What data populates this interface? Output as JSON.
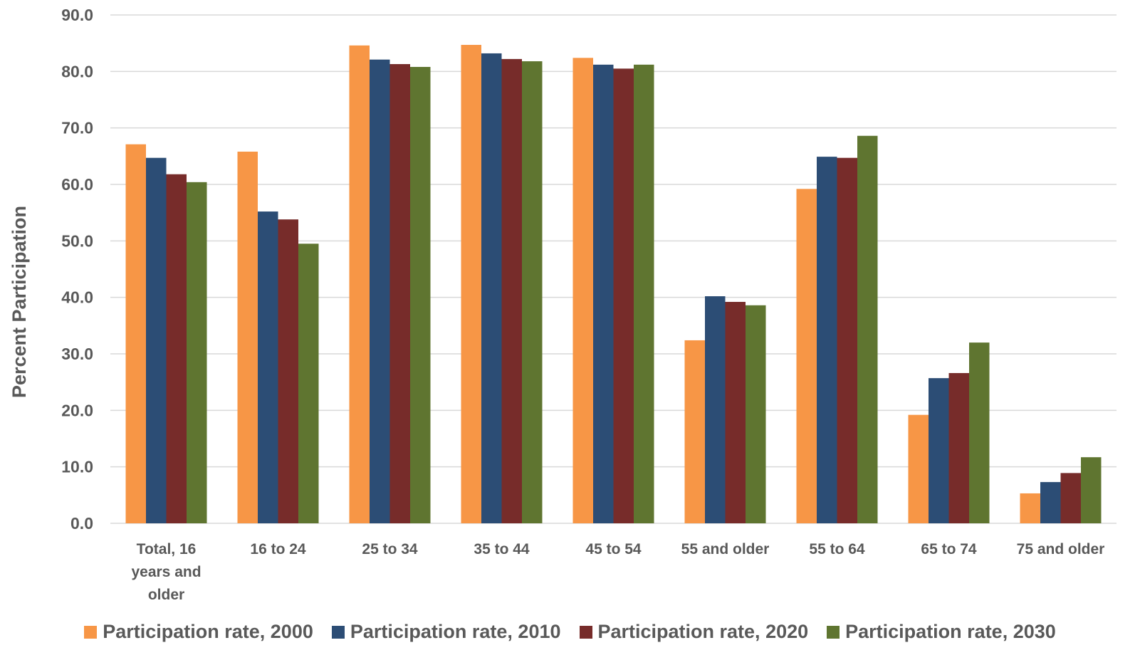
{
  "chart_data": {
    "type": "bar",
    "y_label": "Percent Participation",
    "categories": [
      "Total, 16 years and older",
      "16 to 24",
      "25 to 34",
      "35 to 44",
      "45 to 54",
      "55 and older",
      "55 to 64",
      "65 to 74",
      "75 and older"
    ],
    "series": [
      {
        "name": "Participation rate, 2000",
        "color": "#f79646",
        "values": [
          67.1,
          65.8,
          84.6,
          84.7,
          82.4,
          32.4,
          59.2,
          19.2,
          5.3
        ]
      },
      {
        "name": "Participation rate, 2010",
        "color": "#2c4d75",
        "values": [
          64.7,
          55.2,
          82.1,
          83.2,
          81.2,
          40.2,
          64.9,
          25.7,
          7.3
        ]
      },
      {
        "name": "Participation rate, 2020",
        "color": "#772c2a",
        "values": [
          61.8,
          53.8,
          81.3,
          82.2,
          80.5,
          39.2,
          64.7,
          26.6,
          8.9
        ]
      },
      {
        "name": "Participation rate, 2030",
        "color": "#5f7530",
        "values": [
          60.4,
          49.5,
          80.8,
          81.8,
          81.2,
          38.6,
          68.6,
          32.0,
          11.7
        ]
      }
    ],
    "ylim": [
      0,
      90
    ],
    "yticks": [
      {
        "value": 0,
        "label": "0.0"
      },
      {
        "value": 10,
        "label": "10.0"
      },
      {
        "value": 20,
        "label": "20.0"
      },
      {
        "value": 30,
        "label": "30.0"
      },
      {
        "value": 40,
        "label": "40.0"
      },
      {
        "value": 50,
        "label": "50.0"
      },
      {
        "value": 60,
        "label": "60.0"
      },
      {
        "value": 70,
        "label": "70.0"
      },
      {
        "value": 80,
        "label": "80.0"
      },
      {
        "value": 90,
        "label": "90.0"
      }
    ],
    "grid": true,
    "legend": "bottom"
  }
}
